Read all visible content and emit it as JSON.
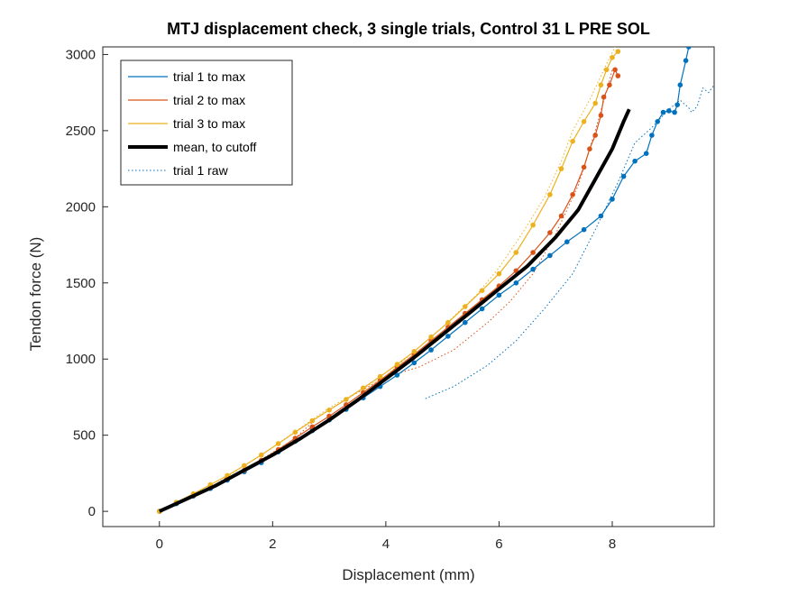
{
  "chart_data": {
    "type": "line",
    "title": "MTJ displacement check, 3 single trials, Control 31 L PRE SOL",
    "xlabel": "Displacement (mm)",
    "ylabel": "Tendon force (N)",
    "xlim": [
      -1,
      9.8
    ],
    "ylim": [
      -100,
      3050
    ],
    "xticks": [
      0,
      2,
      4,
      6,
      8
    ],
    "yticks": [
      0,
      500,
      1000,
      1500,
      2000,
      2500,
      3000
    ],
    "grid": false,
    "box": true,
    "legend_location": "top-left",
    "series": [
      {
        "name": "trial 1 to max",
        "color": "#0072BD",
        "style": "solid-dots",
        "points": [
          [
            0,
            0
          ],
          [
            0.3,
            50
          ],
          [
            0.6,
            100
          ],
          [
            0.9,
            150
          ],
          [
            1.2,
            205
          ],
          [
            1.5,
            260
          ],
          [
            1.8,
            320
          ],
          [
            2.1,
            390
          ],
          [
            2.4,
            460
          ],
          [
            2.7,
            530
          ],
          [
            3.0,
            600
          ],
          [
            3.3,
            670
          ],
          [
            3.6,
            745
          ],
          [
            3.9,
            820
          ],
          [
            4.2,
            895
          ],
          [
            4.5,
            975
          ],
          [
            4.8,
            1060
          ],
          [
            5.1,
            1150
          ],
          [
            5.4,
            1240
          ],
          [
            5.7,
            1330
          ],
          [
            6.0,
            1420
          ],
          [
            6.3,
            1500
          ],
          [
            6.6,
            1590
          ],
          [
            6.9,
            1680
          ],
          [
            7.2,
            1770
          ],
          [
            7.5,
            1850
          ],
          [
            7.8,
            1940
          ],
          [
            8.0,
            2050
          ],
          [
            8.2,
            2200
          ],
          [
            8.4,
            2300
          ],
          [
            8.6,
            2350
          ],
          [
            8.7,
            2470
          ],
          [
            8.8,
            2560
          ],
          [
            8.9,
            2620
          ],
          [
            9.0,
            2630
          ],
          [
            9.1,
            2620
          ],
          [
            9.15,
            2670
          ],
          [
            9.2,
            2800
          ],
          [
            9.3,
            2960
          ],
          [
            9.35,
            3050
          ]
        ]
      },
      {
        "name": "trial 2 to max",
        "color": "#D95319",
        "style": "solid-dots",
        "points": [
          [
            0,
            0
          ],
          [
            0.3,
            55
          ],
          [
            0.6,
            105
          ],
          [
            0.9,
            160
          ],
          [
            1.2,
            215
          ],
          [
            1.5,
            270
          ],
          [
            1.8,
            335
          ],
          [
            2.1,
            405
          ],
          [
            2.4,
            480
          ],
          [
            2.7,
            555
          ],
          [
            3.0,
            625
          ],
          [
            3.3,
            700
          ],
          [
            3.6,
            780
          ],
          [
            3.9,
            860
          ],
          [
            4.2,
            945
          ],
          [
            4.5,
            1030
          ],
          [
            4.8,
            1120
          ],
          [
            5.1,
            1210
          ],
          [
            5.4,
            1300
          ],
          [
            5.7,
            1390
          ],
          [
            6.0,
            1480
          ],
          [
            6.3,
            1580
          ],
          [
            6.6,
            1700
          ],
          [
            6.9,
            1830
          ],
          [
            7.1,
            1940
          ],
          [
            7.3,
            2080
          ],
          [
            7.5,
            2260
          ],
          [
            7.6,
            2380
          ],
          [
            7.7,
            2470
          ],
          [
            7.8,
            2600
          ],
          [
            7.85,
            2720
          ],
          [
            7.95,
            2800
          ],
          [
            8.05,
            2900
          ],
          [
            8.1,
            2860
          ]
        ]
      },
      {
        "name": "trial 3 to max",
        "color": "#EDB120",
        "style": "solid-dots",
        "points": [
          [
            0,
            0
          ],
          [
            0.3,
            60
          ],
          [
            0.6,
            115
          ],
          [
            0.9,
            175
          ],
          [
            1.2,
            235
          ],
          [
            1.5,
            300
          ],
          [
            1.8,
            370
          ],
          [
            2.1,
            445
          ],
          [
            2.4,
            520
          ],
          [
            2.7,
            595
          ],
          [
            3.0,
            665
          ],
          [
            3.3,
            735
          ],
          [
            3.6,
            810
          ],
          [
            3.9,
            885
          ],
          [
            4.2,
            965
          ],
          [
            4.5,
            1050
          ],
          [
            4.8,
            1145
          ],
          [
            5.1,
            1240
          ],
          [
            5.4,
            1345
          ],
          [
            5.7,
            1450
          ],
          [
            6.0,
            1560
          ],
          [
            6.3,
            1700
          ],
          [
            6.6,
            1880
          ],
          [
            6.9,
            2080
          ],
          [
            7.1,
            2250
          ],
          [
            7.3,
            2430
          ],
          [
            7.5,
            2560
          ],
          [
            7.7,
            2680
          ],
          [
            7.8,
            2800
          ],
          [
            7.9,
            2900
          ],
          [
            8.0,
            2980
          ],
          [
            8.1,
            3020
          ]
        ]
      },
      {
        "name": "mean, to cutoff",
        "color": "#000000",
        "style": "thick",
        "points": [
          [
            0,
            0
          ],
          [
            0.5,
            85
          ],
          [
            1.0,
            170
          ],
          [
            1.5,
            270
          ],
          [
            2.0,
            370
          ],
          [
            2.5,
            480
          ],
          [
            3.0,
            600
          ],
          [
            3.5,
            730
          ],
          [
            4.0,
            870
          ],
          [
            4.5,
            1010
          ],
          [
            5.0,
            1160
          ],
          [
            5.5,
            1310
          ],
          [
            6.0,
            1460
          ],
          [
            6.5,
            1610
          ],
          [
            7.0,
            1800
          ],
          [
            7.4,
            1980
          ],
          [
            7.7,
            2180
          ],
          [
            8.0,
            2380
          ],
          [
            8.2,
            2560
          ],
          [
            8.3,
            2640
          ]
        ]
      },
      {
        "name": "trial 1 raw",
        "color": "#0072BD",
        "style": "dotted",
        "points": [
          [
            4.7,
            740
          ],
          [
            5.2,
            820
          ],
          [
            5.8,
            960
          ],
          [
            6.3,
            1120
          ],
          [
            6.8,
            1330
          ],
          [
            7.3,
            1560
          ],
          [
            7.7,
            1850
          ],
          [
            8.1,
            2160
          ],
          [
            8.4,
            2420
          ],
          [
            8.7,
            2520
          ],
          [
            9.0,
            2640
          ],
          [
            9.2,
            2700
          ],
          [
            9.35,
            2650
          ],
          [
            9.4,
            2620
          ],
          [
            9.5,
            2660
          ],
          [
            9.6,
            2780
          ],
          [
            9.7,
            2750
          ],
          [
            9.8,
            2800
          ]
        ]
      },
      {
        "name": "",
        "color": "#D95319",
        "style": "dotted",
        "points": [
          [
            1.8,
            340
          ],
          [
            2.4,
            480
          ],
          [
            2.8,
            620
          ],
          [
            3.4,
            760
          ],
          [
            4.0,
            880
          ],
          [
            4.6,
            950
          ],
          [
            5.2,
            1060
          ],
          [
            5.8,
            1240
          ],
          [
            6.2,
            1380
          ],
          [
            6.6,
            1560
          ],
          [
            7.0,
            1820
          ],
          [
            7.4,
            2140
          ],
          [
            7.7,
            2500
          ],
          [
            7.9,
            2760
          ],
          [
            8.0,
            2900
          ]
        ]
      },
      {
        "name": "",
        "color": "#EDB120",
        "style": "dotted",
        "points": [
          [
            0,
            0
          ],
          [
            1.0,
            180
          ],
          [
            2.0,
            420
          ],
          [
            3.0,
            680
          ],
          [
            4.0,
            890
          ],
          [
            5.0,
            1210
          ],
          [
            5.6,
            1420
          ],
          [
            6.0,
            1600
          ],
          [
            6.4,
            1820
          ],
          [
            6.8,
            2060
          ],
          [
            7.1,
            2300
          ],
          [
            7.3,
            2500
          ],
          [
            7.6,
            2700
          ],
          [
            7.85,
            2900
          ],
          [
            8.05,
            3050
          ]
        ]
      }
    ]
  }
}
